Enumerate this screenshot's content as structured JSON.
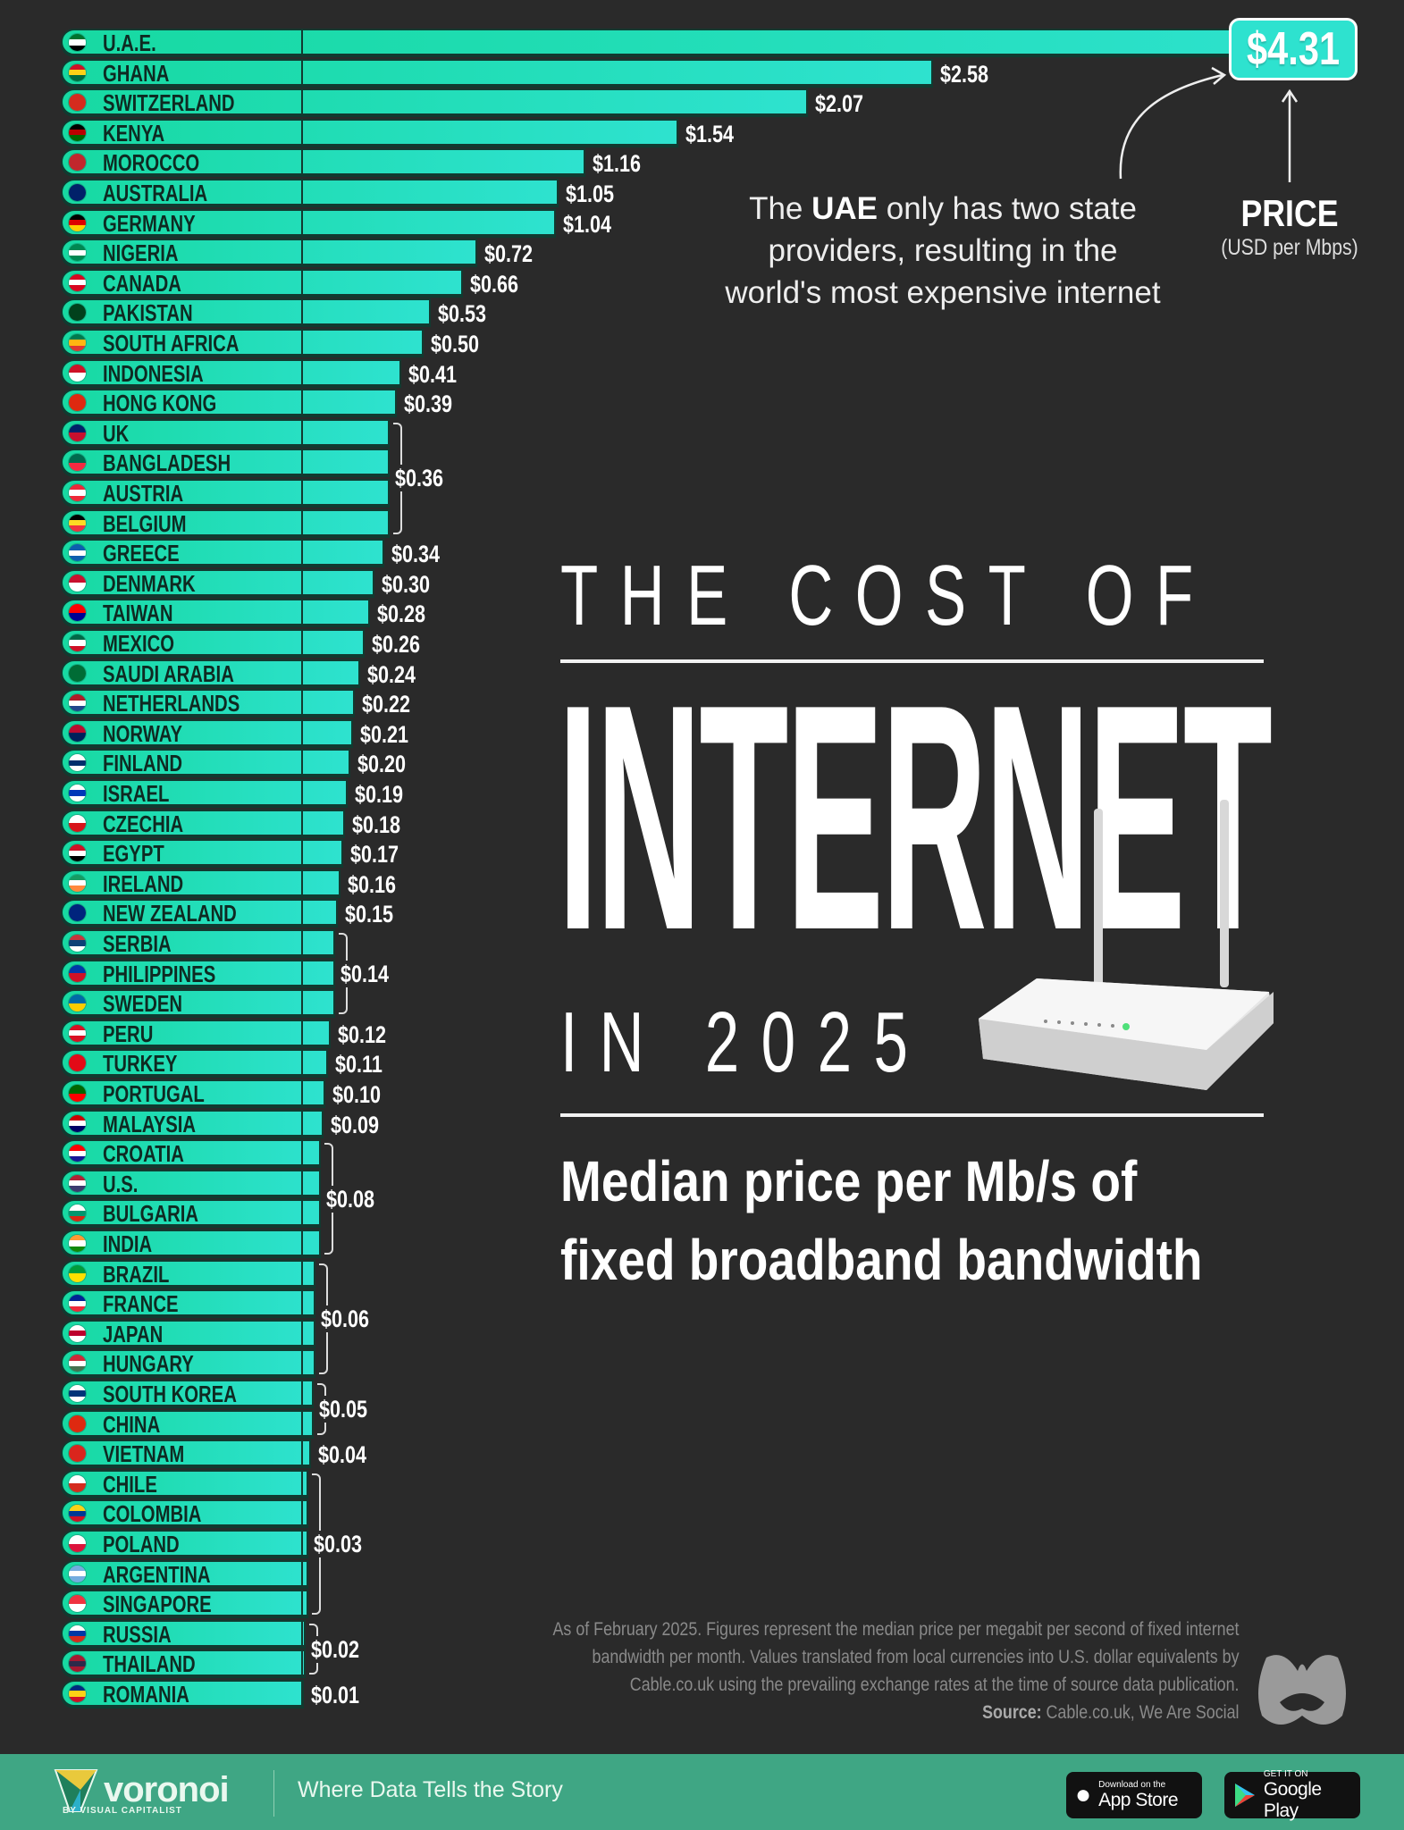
{
  "chart_data": {
    "type": "bar",
    "orientation": "horizontal",
    "categories": [
      "U.A.E.",
      "GHANA",
      "SWITZERLAND",
      "KENYA",
      "MOROCCO",
      "AUSTRALIA",
      "GERMANY",
      "NIGERIA",
      "CANADA",
      "PAKISTAN",
      "SOUTH AFRICA",
      "INDONESIA",
      "HONG KONG",
      "UK",
      "BANGLADESH",
      "AUSTRIA",
      "BELGIUM",
      "GREECE",
      "DENMARK",
      "TAIWAN",
      "MEXICO",
      "SAUDI ARABIA",
      "NETHERLANDS",
      "NORWAY",
      "FINLAND",
      "ISRAEL",
      "CZECHIA",
      "EGYPT",
      "IRELAND",
      "NEW ZEALAND",
      "SERBIA",
      "PHILIPPINES",
      "SWEDEN",
      "PERU",
      "TURKEY",
      "PORTUGAL",
      "MALAYSIA",
      "CROATIA",
      "U.S.",
      "BULGARIA",
      "INDIA",
      "BRAZIL",
      "FRANCE",
      "JAPAN",
      "HUNGARY",
      "SOUTH KOREA",
      "CHINA",
      "VIETNAM",
      "CHILE",
      "COLOMBIA",
      "POLAND",
      "ARGENTINA",
      "SINGAPORE",
      "RUSSIA",
      "THAILAND",
      "ROMANIA"
    ],
    "values": [
      4.31,
      2.58,
      2.07,
      1.54,
      1.16,
      1.05,
      1.04,
      0.72,
      0.66,
      0.53,
      0.5,
      0.41,
      0.39,
      0.36,
      0.36,
      0.36,
      0.36,
      0.34,
      0.3,
      0.28,
      0.26,
      0.24,
      0.22,
      0.21,
      0.2,
      0.19,
      0.18,
      0.17,
      0.16,
      0.15,
      0.14,
      0.14,
      0.14,
      0.12,
      0.11,
      0.1,
      0.09,
      0.08,
      0.08,
      0.08,
      0.08,
      0.06,
      0.06,
      0.06,
      0.06,
      0.05,
      0.05,
      0.04,
      0.03,
      0.03,
      0.03,
      0.03,
      0.03,
      0.02,
      0.02,
      0.01
    ],
    "value_prefix": "$",
    "flags": [
      [
        "#00732f",
        "#fff",
        "#000"
      ],
      [
        "#ce1126",
        "#fcd116",
        "#006b3f"
      ],
      [
        "#d52b1e",
        "#d52b1e"
      ],
      [
        "#000",
        "#bb0000",
        "#006600"
      ],
      [
        "#c1272d",
        "#c1272d"
      ],
      [
        "#012169",
        "#012169"
      ],
      [
        "#000",
        "#dd0000",
        "#ffce00"
      ],
      [
        "#008751",
        "#fff",
        "#008751"
      ],
      [
        "#d80621",
        "#fff",
        "#d80621"
      ],
      [
        "#01411c",
        "#01411c"
      ],
      [
        "#007a4d",
        "#ffb612",
        "#de3831"
      ],
      [
        "#ce1126",
        "#fff"
      ],
      [
        "#de2910",
        "#de2910"
      ],
      [
        "#012169",
        "#c8102e"
      ],
      [
        "#006a4e",
        "#f42a41"
      ],
      [
        "#ed2939",
        "#fff",
        "#ed2939"
      ],
      [
        "#000",
        "#fdda24",
        "#ef3340"
      ],
      [
        "#0d5eaf",
        "#fff",
        "#0d5eaf"
      ],
      [
        "#c8102e",
        "#fff"
      ],
      [
        "#fe0000",
        "#000095"
      ],
      [
        "#006847",
        "#fff",
        "#ce1126"
      ],
      [
        "#006c35",
        "#006c35"
      ],
      [
        "#ae1c28",
        "#fff",
        "#21468b"
      ],
      [
        "#ba0c2f",
        "#00205b"
      ],
      [
        "#fff",
        "#002f6c",
        "#fff"
      ],
      [
        "#fff",
        "#0038b8",
        "#fff"
      ],
      [
        "#fff",
        "#d7141a"
      ],
      [
        "#ce1126",
        "#fff",
        "#000"
      ],
      [
        "#169b62",
        "#fff",
        "#ff883e"
      ],
      [
        "#00247d",
        "#00247d"
      ],
      [
        "#c6363c",
        "#0c4076",
        "#fff"
      ],
      [
        "#0038a8",
        "#ce1126"
      ],
      [
        "#006aa7",
        "#fecc00"
      ],
      [
        "#d91023",
        "#fff",
        "#d91023"
      ],
      [
        "#e30a17",
        "#e30a17"
      ],
      [
        "#006600",
        "#ff0000"
      ],
      [
        "#cc0001",
        "#fff",
        "#010066"
      ],
      [
        "#ff0000",
        "#fff",
        "#171796"
      ],
      [
        "#b22234",
        "#fff",
        "#3c3b6e"
      ],
      [
        "#fff",
        "#00966e",
        "#d62612"
      ],
      [
        "#ff9933",
        "#fff",
        "#138808"
      ],
      [
        "#009c3b",
        "#ffdf00"
      ],
      [
        "#002395",
        "#fff",
        "#ed2939"
      ],
      [
        "#fff",
        "#bc002d",
        "#fff"
      ],
      [
        "#ce2939",
        "#fff",
        "#477050"
      ],
      [
        "#fff",
        "#003478",
        "#fff"
      ],
      [
        "#de2910",
        "#de2910"
      ],
      [
        "#da251d",
        "#da251d"
      ],
      [
        "#fff",
        "#d52b1e"
      ],
      [
        "#fcd116",
        "#003893",
        "#ce1126"
      ],
      [
        "#fff",
        "#dc143c"
      ],
      [
        "#74acdf",
        "#fff",
        "#74acdf"
      ],
      [
        "#ef3340",
        "#fff"
      ],
      [
        "#fff",
        "#0039a6",
        "#d52b1e"
      ],
      [
        "#a51931",
        "#2d2a4a",
        "#a51931"
      ],
      [
        "#002b7f",
        "#fcd116",
        "#ce1126"
      ]
    ],
    "xlim": [
      0,
      4.31
    ],
    "grid": false,
    "bar_color": "#1ed9b0",
    "highlight": {
      "category": "U.A.E.",
      "label": "$4.31"
    }
  },
  "annotation": {
    "pre": "The ",
    "bold": "UAE",
    "rest1": " only has two state",
    "line2": "providers, resulting in the",
    "line3": "world's most expensive internet"
  },
  "axis_label": {
    "title": "PRICE",
    "unit": "(USD per Mbps)"
  },
  "title": {
    "line1": "THE COST OF",
    "line2": "INTERNET",
    "line3": "IN 2025"
  },
  "subtitle": {
    "line1": "Median price per Mb/s of",
    "line2": "fixed broadband bandwidth"
  },
  "footnote": {
    "line1": "As of February 2025. Figures represent the median price per megabit per second of fixed internet",
    "line2": "bandwidth per month. Values translated from local currencies into U.S. dollar equivalents by",
    "line3": "Cable.co.uk using the prevailing exchange rates at the time of source data publication.",
    "source_label": "Source:",
    "source": " Cable.co.uk, We Are Social"
  },
  "footer": {
    "brand": "voronoi",
    "brand_sub": "BY VISUAL CAPITALIST",
    "tagline": "Where Data Tells the Story",
    "appstore_small": "Download on the",
    "appstore": "App Store",
    "googleplay_small": "GET IT ON",
    "googleplay": "Google Play",
    "color": "#3fa684"
  }
}
